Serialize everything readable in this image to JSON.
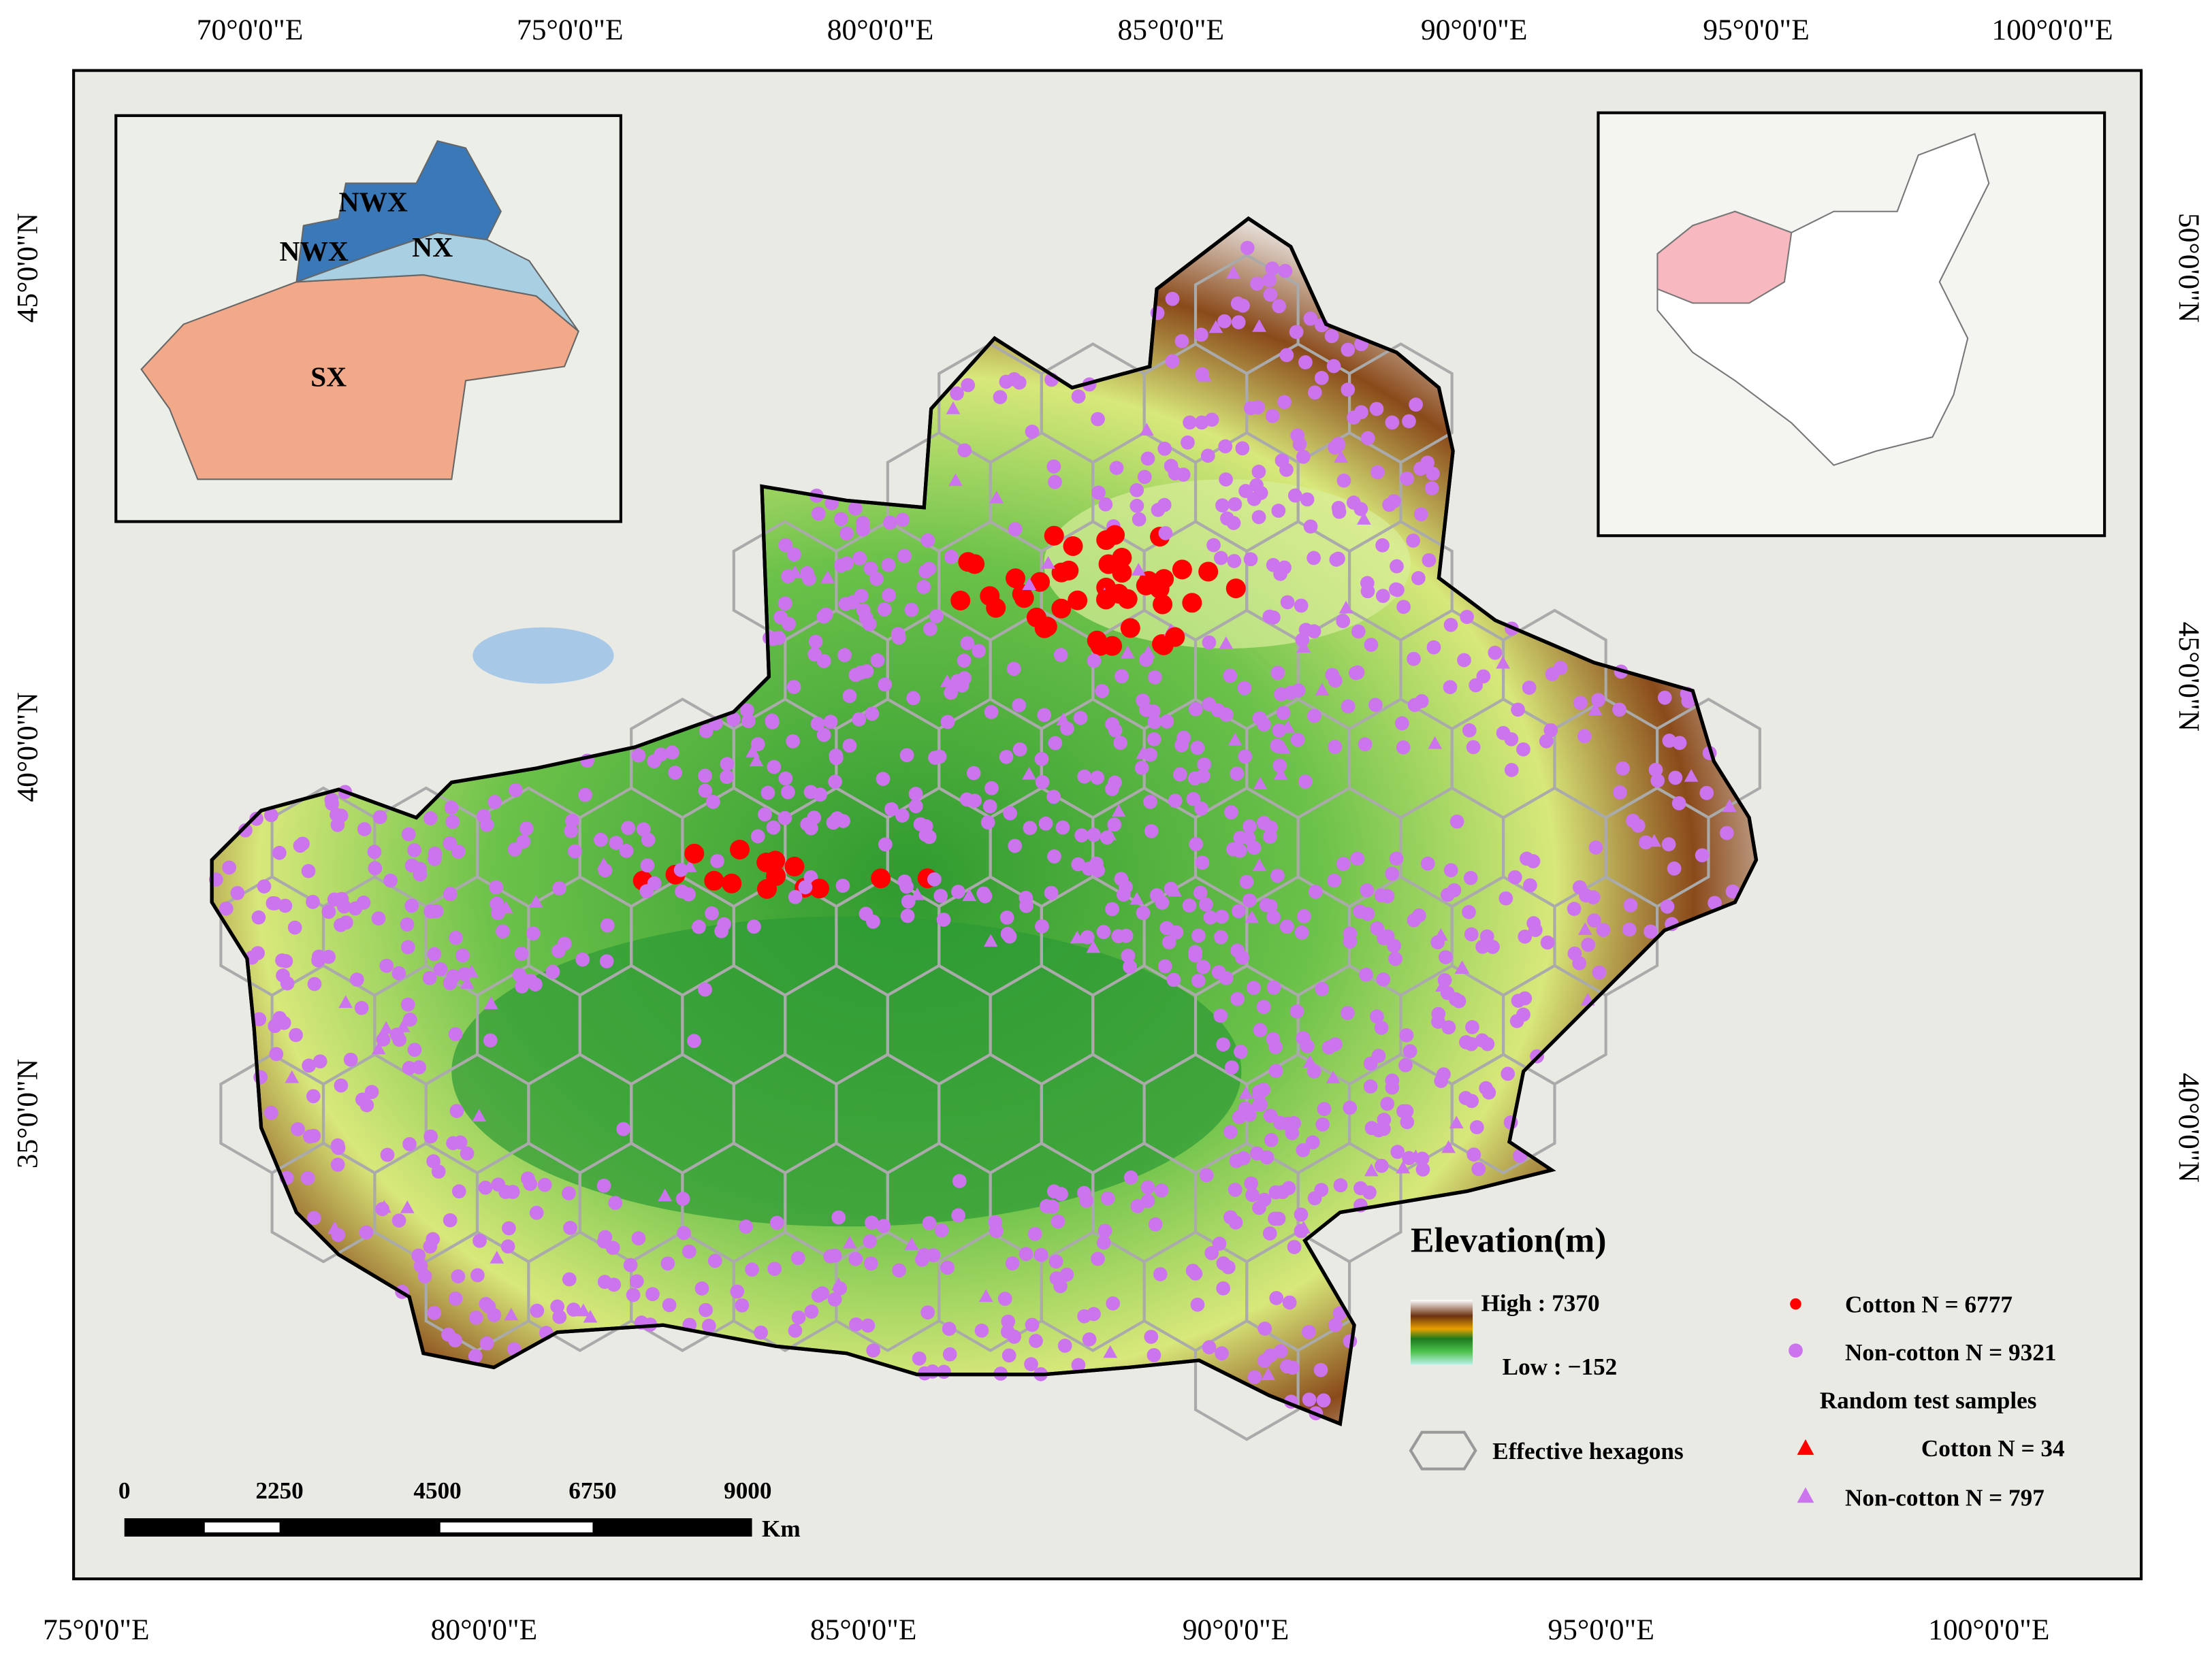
{
  "top_axis": [
    "70°0'0\"E",
    "75°0'0\"E",
    "80°0'0\"E",
    "85°0'0\"E",
    "90°0'0\"E",
    "95°0'0\"E",
    "100°0'0\"E"
  ],
  "bottom_axis": [
    "75°0'0\"E",
    "80°0'0\"E",
    "85°0'0\"E",
    "90°0'0\"E",
    "95°0'0\"E",
    "100°0'0\"E"
  ],
  "left_axis": [
    "45°0'0\"N",
    "40°0'0\"N",
    "35°0'0\"N"
  ],
  "right_axis": [
    "50°0'0\"N",
    "45°0'0\"N",
    "40°0'0\"N"
  ],
  "inset_regions": [
    "NWX",
    "NWX",
    "NX",
    "SX"
  ],
  "legend": {
    "elevation_title": "Elevation(m)",
    "high": "High : 7370",
    "low": "Low : −152",
    "hexagons": "Effective hexagons",
    "cotton": "Cotton N = 6777",
    "non_cotton": "Non-cotton N = 9321",
    "random_title": "Random test samples",
    "random_cotton": "Cotton N = 34",
    "random_non_cotton": "Non-cotton N = 797"
  },
  "scale_bar": {
    "labels": [
      "0",
      "2250",
      "4500",
      "6750",
      "9000"
    ],
    "unit": "Km"
  }
}
